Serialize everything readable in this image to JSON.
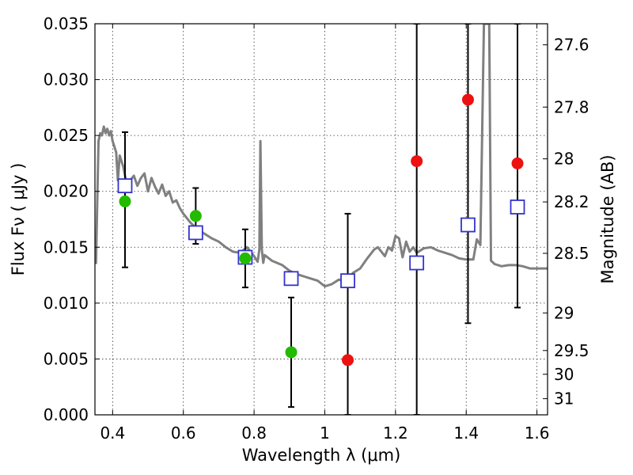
{
  "chart_data": {
    "type": "scatter",
    "xlabel": "Wavelength  λ (μm)",
    "ylabel": "Flux  Fν  ( μJy )",
    "y2label": "Magnitude (AB)",
    "xlim": [
      0.35,
      1.63
    ],
    "ylim": [
      0.0,
      0.035
    ],
    "x_ticks": [
      0.4,
      0.6,
      0.8,
      1.0,
      1.2,
      1.4,
      1.6
    ],
    "x_tick_labels": [
      "0.4",
      "0.6",
      "0.8",
      "1",
      "1.2",
      "1.4",
      "1.6"
    ],
    "y_ticks": [
      0.0,
      0.005,
      0.01,
      0.015,
      0.02,
      0.025,
      0.03,
      0.035
    ],
    "y_tick_labels": [
      "0.000",
      "0.005",
      "0.010",
      "0.015",
      "0.020",
      "0.025",
      "0.030",
      "0.035"
    ],
    "mag_ticks": [
      27.6,
      27.8,
      28,
      28.2,
      28.5,
      29,
      29.5,
      30,
      31
    ],
    "mag_tick_labels": [
      "27.6",
      "27.8",
      "28",
      "28.2",
      "28.5",
      "29",
      "29.5",
      "30",
      "31"
    ],
    "grid": true,
    "colors": {
      "detected": "#22bb00",
      "upper": "#ee1111",
      "model": "#3333cc",
      "sed": "#808080"
    },
    "series": [
      {
        "kind": "errorbar",
        "x": [
          0.435,
          0.635,
          0.775,
          0.905,
          1.065,
          1.26,
          1.405,
          1.545
        ],
        "ylow": [
          0.0132,
          0.0153,
          0.0114,
          0.0007,
          0.0,
          0.0,
          0.0082,
          0.0096
        ],
        "yhigh": [
          0.0253,
          0.0203,
          0.0166,
          0.0105,
          0.018,
          0.035,
          0.035,
          0.035
        ]
      },
      {
        "kind": "detected",
        "x": [
          0.435,
          0.635,
          0.775,
          0.905
        ],
        "y": [
          0.0191,
          0.0178,
          0.014,
          0.0056
        ]
      },
      {
        "kind": "upper",
        "x": [
          1.065,
          1.26,
          1.405,
          1.545
        ],
        "y": [
          0.0049,
          0.0227,
          0.0282,
          0.0225
        ]
      },
      {
        "kind": "model",
        "x": [
          0.435,
          0.635,
          0.775,
          0.905,
          1.065,
          1.26,
          1.405,
          1.545
        ],
        "y": [
          0.0205,
          0.0163,
          0.0141,
          0.0122,
          0.012,
          0.0136,
          0.017,
          0.0186
        ]
      },
      {
        "kind": "sed",
        "x": [
          0.353,
          0.36,
          0.365,
          0.37,
          0.375,
          0.38,
          0.385,
          0.39,
          0.395,
          0.4,
          0.405,
          0.41,
          0.415,
          0.42,
          0.43,
          0.44,
          0.45,
          0.46,
          0.47,
          0.48,
          0.49,
          0.5,
          0.51,
          0.52,
          0.53,
          0.54,
          0.55,
          0.56,
          0.57,
          0.58,
          0.59,
          0.6,
          0.62,
          0.64,
          0.66,
          0.68,
          0.7,
          0.72,
          0.74,
          0.76,
          0.78,
          0.8,
          0.81,
          0.815,
          0.818,
          0.822,
          0.826,
          0.83,
          0.85,
          0.88,
          0.9,
          0.92,
          0.94,
          0.96,
          0.98,
          1.0,
          1.02,
          1.04,
          1.06,
          1.08,
          1.1,
          1.12,
          1.14,
          1.15,
          1.16,
          1.17,
          1.18,
          1.19,
          1.2,
          1.21,
          1.22,
          1.23,
          1.24,
          1.25,
          1.26,
          1.28,
          1.3,
          1.32,
          1.34,
          1.36,
          1.38,
          1.4,
          1.42,
          1.43,
          1.44,
          1.45,
          1.455,
          1.46,
          1.465,
          1.47,
          1.48,
          1.5,
          1.52,
          1.54,
          1.56,
          1.58,
          1.6,
          1.63
        ],
        "y": [
          0.0135,
          0.0245,
          0.0252,
          0.025,
          0.0258,
          0.0252,
          0.0256,
          0.025,
          0.0254,
          0.0245,
          0.024,
          0.0235,
          0.021,
          0.0232,
          0.0222,
          0.0206,
          0.021,
          0.0214,
          0.0205,
          0.0212,
          0.0216,
          0.02,
          0.0212,
          0.0204,
          0.0198,
          0.0206,
          0.0196,
          0.02,
          0.019,
          0.0192,
          0.0185,
          0.018,
          0.0172,
          0.0166,
          0.0162,
          0.0158,
          0.0155,
          0.015,
          0.0146,
          0.0145,
          0.015,
          0.0142,
          0.0137,
          0.0148,
          0.0245,
          0.0148,
          0.0136,
          0.0143,
          0.0138,
          0.0134,
          0.0129,
          0.0126,
          0.0124,
          0.0122,
          0.012,
          0.0115,
          0.0117,
          0.0121,
          0.0119,
          0.0127,
          0.0131,
          0.014,
          0.0148,
          0.015,
          0.0146,
          0.0142,
          0.015,
          0.0147,
          0.016,
          0.0158,
          0.0141,
          0.0155,
          0.0146,
          0.015,
          0.0145,
          0.0149,
          0.015,
          0.0147,
          0.0145,
          0.0143,
          0.014,
          0.0139,
          0.0139,
          0.0157,
          0.0152,
          0.035,
          0.035,
          0.035,
          0.035,
          0.0138,
          0.0135,
          0.0133,
          0.0134,
          0.0134,
          0.0133,
          0.0131,
          0.0131,
          0.0131
        ]
      }
    ]
  }
}
